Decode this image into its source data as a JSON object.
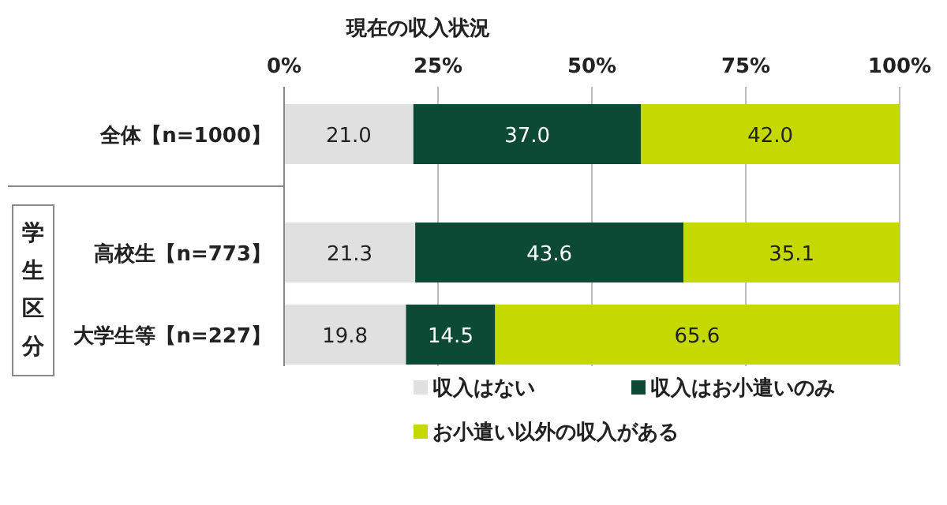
{
  "chart_data": {
    "type": "bar",
    "orientation": "horizontal",
    "stacked": true,
    "title": "現在の収入状況",
    "categories": [
      "全体【n=1000】",
      "高校生【n=773】",
      "大学生等【n=227】"
    ],
    "series": [
      {
        "name": "収入はない",
        "color": "#e0e0e0",
        "values": [
          21.0,
          21.3,
          19.8
        ]
      },
      {
        "name": "収入はお小遣いのみ",
        "color": "#0d4a36",
        "values": [
          37.0,
          43.6,
          14.5
        ]
      },
      {
        "name": "お小遣い以外の収入がある",
        "color": "#c5d800",
        "values": [
          42.0,
          35.1,
          65.6
        ]
      }
    ],
    "value_labels": [
      [
        "21.0",
        "21.3",
        "19.8"
      ],
      [
        "37.0",
        "43.6",
        "14.5"
      ],
      [
        "42.0",
        "35.1",
        "65.6"
      ]
    ],
    "xlim": [
      0,
      100
    ],
    "xticks": [
      {
        "value": 0,
        "label": "0%"
      },
      {
        "value": 25,
        "label": "25%"
      },
      {
        "value": 50,
        "label": "50%"
      },
      {
        "value": 75,
        "label": "75%"
      },
      {
        "value": 100,
        "label": "100%"
      }
    ],
    "grid": "x",
    "legend": "bottom",
    "annotations": [
      "学生区分"
    ]
  }
}
